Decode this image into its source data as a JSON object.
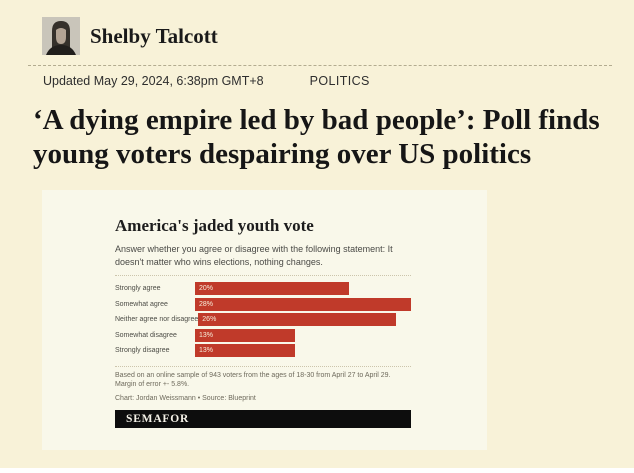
{
  "page": {
    "background": "#f8f2d8",
    "card_background": "#f9f8ea"
  },
  "author": {
    "name": "Shelby Talcott",
    "avatar_icon": "author-portrait-photo"
  },
  "meta": {
    "updated": "Updated May 29, 2024, 6:38pm GMT+8",
    "category": "POLITICS"
  },
  "headline": "‘A dying empire led by bad people’: Poll finds young voters despairing over US politics",
  "chart": {
    "title": "America's jaded youth vote",
    "subtitle": "Answer whether you agree or disagree with the following statement: It doesn't matter who wins elections, nothing changes.",
    "footnote": "Based on an online sample of 943 voters from the ages of 18-30 from April 27 to April 29. Margin of error +- 5.8%.",
    "credit": "Chart: Jordan Weissmann • Source: Blueprint",
    "logo": "SEMAFOR",
    "bar_color": "#c03a2a"
  },
  "chart_data": {
    "type": "bar",
    "orientation": "horizontal",
    "title": "America's jaded youth vote",
    "categories": [
      "Strongly agree",
      "Somewhat agree",
      "Neither agree nor disagree",
      "Somewhat disagree",
      "Strongly disagree"
    ],
    "values": [
      20,
      28,
      26,
      13,
      13
    ],
    "value_labels": [
      "20%",
      "28%",
      "26%",
      "13%",
      "13%"
    ],
    "xlim": [
      0,
      28
    ],
    "xlabel": "",
    "ylabel": "",
    "grid": false,
    "legend": false
  }
}
